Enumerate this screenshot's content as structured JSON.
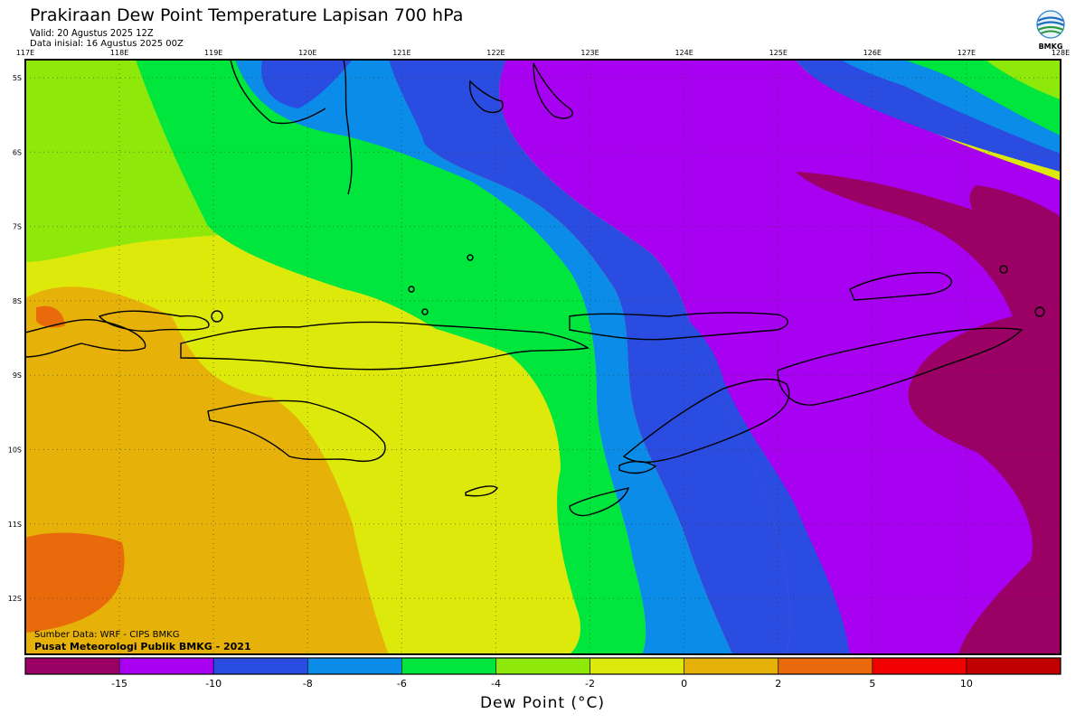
{
  "header": {
    "title": "Prakiraan Dew Point Temperature Lapisan 700 hPa",
    "valid": "Valid: 20 Agustus 2025 12Z",
    "initial": "Data inisial: 16 Agustus 2025 00Z"
  },
  "logo": {
    "text": "BMKG",
    "icon": "bmkg-logo-icon"
  },
  "map": {
    "lon_ticks": [
      "117E",
      "118E",
      "119E",
      "120E",
      "121E",
      "122E",
      "123E",
      "124E",
      "125E",
      "126E",
      "127E",
      "128E"
    ],
    "lat_ticks": [
      "5S",
      "6S",
      "7S",
      "8S",
      "9S",
      "10S",
      "11S",
      "12S"
    ],
    "grid": "dotted",
    "region": "Nusa Tenggara / Banda Sea"
  },
  "credits": {
    "source": "Sumber Data: WRF - CIPS BMKG",
    "producer": "Pusat Meteorologi Publik BMKG - 2021"
  },
  "colorbar": {
    "label": "Dew Point (°C)",
    "colors": [
      "#9b0064",
      "#a800f0",
      "#2b4ce0",
      "#0a8ce8",
      "#00e63c",
      "#8ee90a",
      "#dde90a",
      "#e6b20a",
      "#e86a0a",
      "#f00000",
      "#c00000"
    ],
    "ticks": [
      "-15",
      "-10",
      "-8",
      "-6",
      "-4",
      "-2",
      "0",
      "2",
      "5",
      "10"
    ]
  }
}
